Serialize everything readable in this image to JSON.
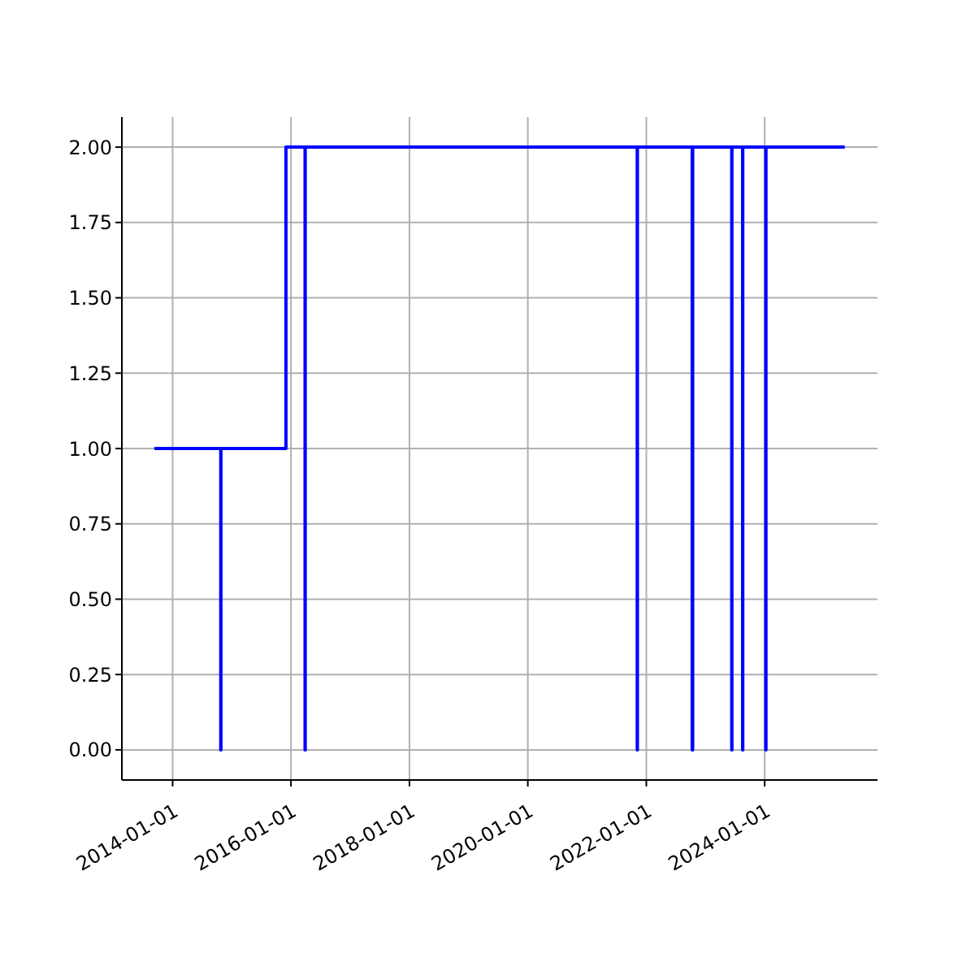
{
  "chart_data": {
    "type": "step",
    "color": "#0000ff",
    "grid": true,
    "x": [
      "2013-09-10",
      "2014-10-25",
      "2014-10-26",
      "2015-12-01",
      "2016-03-28",
      "2016-03-29",
      "2021-11-06",
      "2021-11-07",
      "2022-10-11",
      "2022-10-14",
      "2023-06-12",
      "2023-06-13",
      "2023-08-18",
      "2023-08-19",
      "2024-01-08",
      "2024-01-09",
      "2025-05-09"
    ],
    "values": [
      1,
      0,
      1,
      2,
      0,
      2,
      0,
      2,
      0,
      2,
      0,
      2,
      0,
      2,
      0,
      2,
      2
    ],
    "xlim": [
      "2013-02-22",
      "2025-11-27"
    ],
    "xticks": [
      "2014-01-01",
      "2016-01-01",
      "2018-01-01",
      "2020-01-01",
      "2022-01-01",
      "2024-01-01"
    ],
    "ylim": [
      -0.1,
      2.1
    ],
    "yticks": [
      {
        "value": 0,
        "label": "0.00"
      },
      {
        "value": 0.25,
        "label": "0.25"
      },
      {
        "value": 0.5,
        "label": "0.50"
      },
      {
        "value": 0.75,
        "label": "0.75"
      },
      {
        "value": 1,
        "label": "1.00"
      },
      {
        "value": 1.25,
        "label": "1.25"
      },
      {
        "value": 1.5,
        "label": "1.50"
      },
      {
        "value": 1.75,
        "label": "1.75"
      },
      {
        "value": 2,
        "label": "2.00"
      }
    ]
  }
}
